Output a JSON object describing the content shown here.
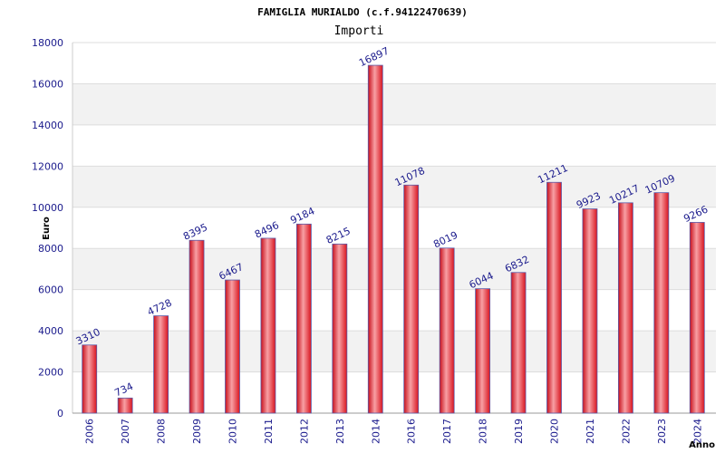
{
  "chart_data": {
    "type": "bar",
    "title": "FAMIGLIA MURIALDO (c.f.94122470639)",
    "subtitle": "Importi",
    "xlabel": "Anno",
    "ylabel": "Euro",
    "ylim": [
      0,
      18000
    ],
    "yticks": [
      0,
      2000,
      4000,
      6000,
      8000,
      10000,
      12000,
      14000,
      16000,
      18000
    ],
    "grid": true,
    "categories": [
      "2006",
      "2007",
      "2008",
      "2009",
      "2010",
      "2011",
      "2012",
      "2013",
      "2014",
      "2016",
      "2017",
      "2018",
      "2019",
      "2020",
      "2021",
      "2022",
      "2023",
      "2024"
    ],
    "values": [
      3310,
      734,
      4728,
      8395,
      6467,
      8496,
      9184,
      8215,
      16897,
      11078,
      8019,
      6044,
      6832,
      11211,
      9923,
      10217,
      10709,
      9266
    ],
    "colors": {
      "bar": "#e8232e",
      "bar_edge": "#5a5aa8",
      "band": "#f2f2f2",
      "text": "#1a1a8c"
    }
  }
}
